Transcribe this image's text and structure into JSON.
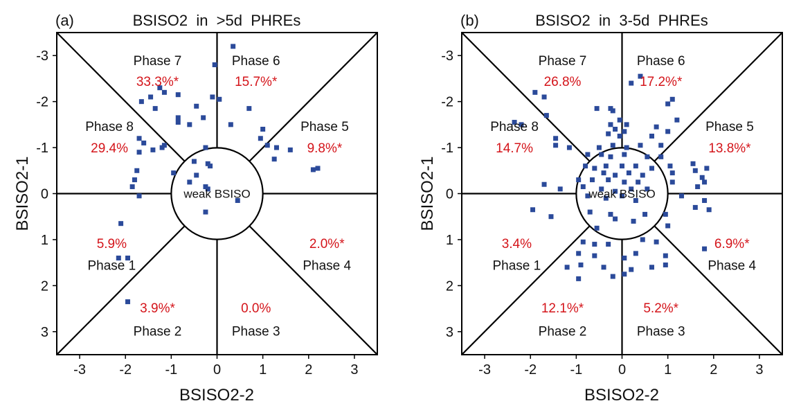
{
  "chart_data": [
    {
      "type": "scatter",
      "panel_label": "(a)",
      "title": "BSISO2  in  >5d  PHREs",
      "xlabel": "BSISO2-2",
      "ylabel": "BSISO2-1",
      "xlim": [
        -3.5,
        3.5
      ],
      "ylim": [
        3.5,
        -3.5
      ],
      "y_inverted": true,
      "xticks": [
        "-3",
        "-2",
        "-1",
        "0",
        "1",
        "2",
        "3"
      ],
      "yticks": [
        "-3",
        "-2",
        "-1",
        "0",
        "1",
        "2",
        "3"
      ],
      "circle_label": "weak BSISO",
      "marker_color": "#2b4a9a",
      "pct_color": "#d4141a",
      "phases": [
        {
          "name": "Phase 1",
          "pct": "5.9%"
        },
        {
          "name": "Phase 2",
          "pct": "3.9%*"
        },
        {
          "name": "Phase 3",
          "pct": "0.0%"
        },
        {
          "name": "Phase 4",
          "pct": "2.0%*"
        },
        {
          "name": "Phase 5",
          "pct": "9.8%*"
        },
        {
          "name": "Phase 6",
          "pct": "15.7%*"
        },
        {
          "name": "Phase 7",
          "pct": "33.3%*"
        },
        {
          "name": "Phase 8",
          "pct": "29.4%"
        }
      ],
      "points": [
        [
          0.35,
          -3.2
        ],
        [
          -0.05,
          -2.8
        ],
        [
          -1.25,
          -2.3
        ],
        [
          -1.15,
          -2.2
        ],
        [
          -0.85,
          -2.15
        ],
        [
          -1.45,
          -2.1
        ],
        [
          -1.65,
          -2.0
        ],
        [
          -0.1,
          -2.1
        ],
        [
          0.05,
          -2.05
        ],
        [
          -0.45,
          -1.9
        ],
        [
          -1.35,
          -1.85
        ],
        [
          0.7,
          -1.85
        ],
        [
          -0.3,
          -1.65
        ],
        [
          -0.85,
          -1.65
        ],
        [
          -0.85,
          -1.55
        ],
        [
          -0.6,
          -1.5
        ],
        [
          0.3,
          -1.5
        ],
        [
          1.0,
          -1.4
        ],
        [
          -1.7,
          -1.2
        ],
        [
          0.95,
          -1.2
        ],
        [
          -1.6,
          -1.1
        ],
        [
          1.1,
          -1.05
        ],
        [
          -1.15,
          -1.05
        ],
        [
          -1.2,
          -1.0
        ],
        [
          -1.4,
          -0.95
        ],
        [
          1.3,
          -1.0
        ],
        [
          1.6,
          -0.95
        ],
        [
          -0.25,
          -1.0
        ],
        [
          -1.7,
          -0.9
        ],
        [
          1.25,
          -0.75
        ],
        [
          -0.5,
          -0.7
        ],
        [
          -0.2,
          -0.65
        ],
        [
          -0.15,
          -0.6
        ],
        [
          -1.75,
          -0.5
        ],
        [
          -0.95,
          -0.45
        ],
        [
          -0.45,
          -0.4
        ],
        [
          2.2,
          -0.55
        ],
        [
          2.1,
          -0.52
        ],
        [
          -1.8,
          -0.3
        ],
        [
          -0.6,
          -0.25
        ],
        [
          -1.85,
          -0.15
        ],
        [
          -0.25,
          -0.15
        ],
        [
          -0.2,
          -0.1
        ],
        [
          -1.7,
          0.05
        ],
        [
          0.45,
          0.15
        ],
        [
          -0.25,
          0.4
        ],
        [
          -2.1,
          0.65
        ],
        [
          -2.15,
          1.4
        ],
        [
          -1.95,
          1.4
        ],
        [
          -1.95,
          2.35
        ]
      ]
    },
    {
      "type": "scatter",
      "panel_label": "(b)",
      "title": "BSISO2  in  3-5d  PHREs",
      "xlabel": "BSISO2-2",
      "ylabel": "BSISO2-1",
      "xlim": [
        -3.5,
        3.5
      ],
      "ylim": [
        3.5,
        -3.5
      ],
      "y_inverted": true,
      "xticks": [
        "-3",
        "-2",
        "-1",
        "0",
        "1",
        "2",
        "3"
      ],
      "yticks": [
        "-3",
        "-2",
        "-1",
        "0",
        "1",
        "2",
        "3"
      ],
      "circle_label": "weak BSISO",
      "marker_color": "#2b4a9a",
      "pct_color": "#d4141a",
      "phases": [
        {
          "name": "Phase 1",
          "pct": "3.4%"
        },
        {
          "name": "Phase 2",
          "pct": "12.1%*"
        },
        {
          "name": "Phase 3",
          "pct": "5.2%*"
        },
        {
          "name": "Phase 4",
          "pct": "6.9%*"
        },
        {
          "name": "Phase 5",
          "pct": "13.8%*"
        },
        {
          "name": "Phase 6",
          "pct": "17.2%*"
        },
        {
          "name": "Phase 7",
          "pct": "26.8%"
        },
        {
          "name": "Phase 8",
          "pct": "14.7%"
        }
      ],
      "points": [
        [
          0.4,
          -2.55
        ],
        [
          0.2,
          -2.4
        ],
        [
          -1.9,
          -2.2
        ],
        [
          -1.7,
          -2.1
        ],
        [
          1.1,
          -2.05
        ],
        [
          1.0,
          -1.95
        ],
        [
          -1.65,
          -1.7
        ],
        [
          -0.55,
          -1.85
        ],
        [
          -0.25,
          -1.85
        ],
        [
          -0.2,
          -1.8
        ],
        [
          -0.05,
          -1.6
        ],
        [
          1.2,
          -1.6
        ],
        [
          -2.35,
          -1.55
        ],
        [
          -2.2,
          -1.5
        ],
        [
          -0.25,
          -1.5
        ],
        [
          0.1,
          -1.5
        ],
        [
          -0.15,
          -1.4
        ],
        [
          0.05,
          -1.35
        ],
        [
          0.75,
          -1.45
        ],
        [
          1.0,
          -1.35
        ],
        [
          -1.45,
          -1.2
        ],
        [
          -0.3,
          -1.3
        ],
        [
          -0.05,
          -1.25
        ],
        [
          0.65,
          -1.25
        ],
        [
          -1.45,
          -1.05
        ],
        [
          -1.15,
          -1.0
        ],
        [
          -0.5,
          -1.0
        ],
        [
          -0.2,
          -1.05
        ],
        [
          0.1,
          -1.0
        ],
        [
          0.4,
          -1.05
        ],
        [
          0.85,
          -1.05
        ],
        [
          -0.75,
          -0.85
        ],
        [
          -0.45,
          -0.85
        ],
        [
          -0.25,
          -0.8
        ],
        [
          0.05,
          -0.85
        ],
        [
          0.55,
          -0.8
        ],
        [
          0.85,
          -0.8
        ],
        [
          1.55,
          -0.65
        ],
        [
          1.85,
          -0.55
        ],
        [
          1.05,
          -0.6
        ],
        [
          -0.8,
          -0.6
        ],
        [
          -0.6,
          -0.55
        ],
        [
          -0.35,
          -0.6
        ],
        [
          0.0,
          -0.6
        ],
        [
          0.3,
          -0.6
        ],
        [
          0.65,
          -0.55
        ],
        [
          1.1,
          -0.45
        ],
        [
          1.6,
          -0.5
        ],
        [
          -0.4,
          -0.45
        ],
        [
          -0.15,
          -0.4
        ],
        [
          0.15,
          -0.45
        ],
        [
          0.45,
          -0.4
        ],
        [
          1.75,
          -0.35
        ],
        [
          1.8,
          -0.25
        ],
        [
          -0.95,
          -0.3
        ],
        [
          -0.65,
          -0.3
        ],
        [
          -0.3,
          -0.3
        ],
        [
          0.05,
          -0.25
        ],
        [
          0.35,
          -0.25
        ],
        [
          1.1,
          -0.25
        ],
        [
          1.65,
          -0.15
        ],
        [
          -1.7,
          -0.2
        ],
        [
          -1.35,
          -0.1
        ],
        [
          -0.85,
          -0.15
        ],
        [
          -0.45,
          -0.1
        ],
        [
          -0.15,
          -0.05
        ],
        [
          0.2,
          -0.1
        ],
        [
          0.55,
          -0.1
        ],
        [
          1.3,
          0.05
        ],
        [
          1.8,
          0.15
        ],
        [
          -0.75,
          0.05
        ],
        [
          -0.35,
          0.1
        ],
        [
          0.0,
          0.05
        ],
        [
          0.3,
          0.15
        ],
        [
          1.6,
          0.3
        ],
        [
          1.9,
          0.35
        ],
        [
          -1.95,
          0.35
        ],
        [
          -1.55,
          0.5
        ],
        [
          -0.7,
          0.4
        ],
        [
          -0.25,
          0.45
        ],
        [
          -0.15,
          0.55
        ],
        [
          0.5,
          0.45
        ],
        [
          0.95,
          0.45
        ],
        [
          1.0,
          0.7
        ],
        [
          0.25,
          0.6
        ],
        [
          -0.55,
          0.75
        ],
        [
          -0.85,
          1.05
        ],
        [
          -0.6,
          1.1
        ],
        [
          -0.3,
          1.1
        ],
        [
          0.45,
          1.0
        ],
        [
          0.75,
          1.05
        ],
        [
          1.8,
          1.2
        ],
        [
          -0.95,
          1.3
        ],
        [
          -0.6,
          1.35
        ],
        [
          0.05,
          1.4
        ],
        [
          0.3,
          1.3
        ],
        [
          0.95,
          1.35
        ],
        [
          -1.2,
          1.6
        ],
        [
          -0.9,
          1.55
        ],
        [
          -0.4,
          1.6
        ],
        [
          0.2,
          1.65
        ],
        [
          0.65,
          1.6
        ],
        [
          0.95,
          1.55
        ],
        [
          -0.95,
          1.85
        ],
        [
          -0.2,
          1.8
        ],
        [
          0.05,
          1.75
        ]
      ]
    }
  ]
}
